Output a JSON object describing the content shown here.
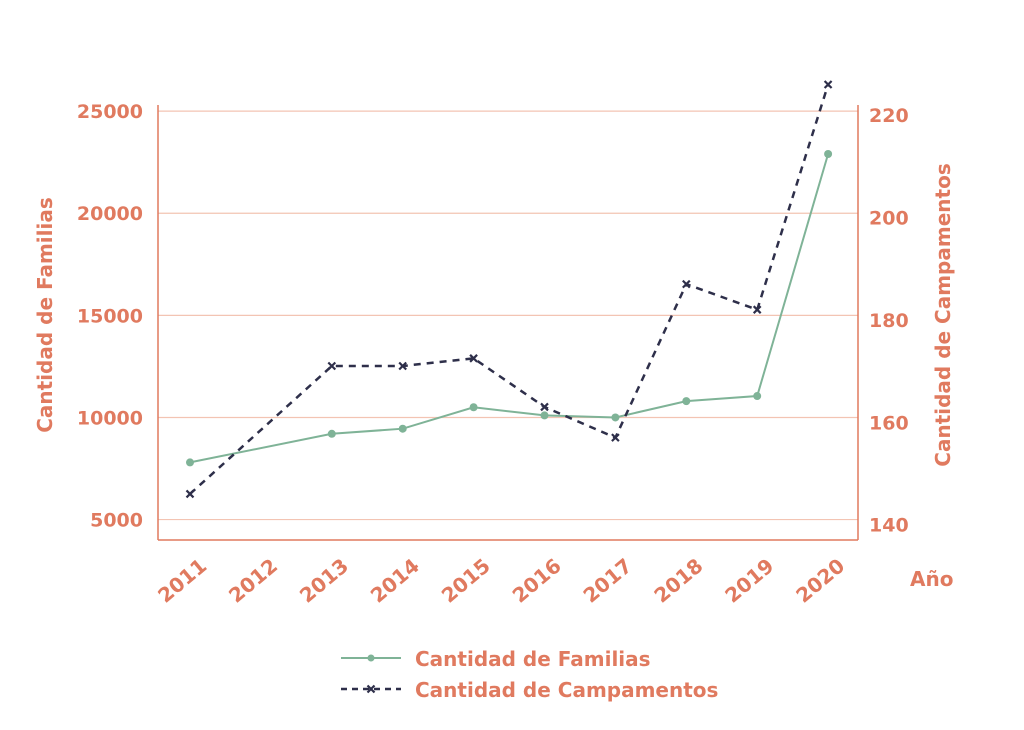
{
  "colors": {
    "axis": "#e07a5f",
    "grid": "#f3c4b3",
    "familias": "#7fb397",
    "campamentos": "#2e2f4a"
  },
  "chart_data": {
    "type": "line",
    "x_label": "Año",
    "categories": [
      "2011",
      "2012",
      "2013",
      "2014",
      "2015",
      "2016",
      "2017",
      "2018",
      "2019",
      "2020"
    ],
    "x_positions": [
      2011,
      2012,
      2013,
      2014,
      2015,
      2016,
      2017,
      2018,
      2019,
      2020
    ],
    "y_left": {
      "label": "Cantidad de Familias",
      "ticks": [
        5000,
        10000,
        15000,
        20000,
        25000
      ],
      "range": [
        4000,
        25300
      ]
    },
    "y_right": {
      "label": "Cantidad de Campamentos",
      "ticks": [
        140,
        160,
        180,
        200,
        220
      ],
      "range": [
        137,
        222
      ]
    },
    "grid": true,
    "legend_position": "bottom",
    "series": [
      {
        "name": "Cantidad de Familias",
        "axis": "left",
        "style": "solid",
        "marker": "circle",
        "x": [
          2011,
          2013,
          2014,
          2015,
          2016,
          2017,
          2018,
          2019,
          2020
        ],
        "values": [
          7800,
          9200,
          9450,
          10500,
          10100,
          10000,
          10800,
          11050,
          22900
        ]
      },
      {
        "name": "Cantidad de Campamentos",
        "axis": "right",
        "style": "dashed",
        "marker": "x",
        "x": [
          2011,
          2013,
          2014,
          2015,
          2016,
          2017,
          2018,
          2019,
          2020
        ],
        "values": [
          146,
          171,
          171,
          172.5,
          163,
          157,
          187,
          182,
          226
        ]
      }
    ]
  }
}
